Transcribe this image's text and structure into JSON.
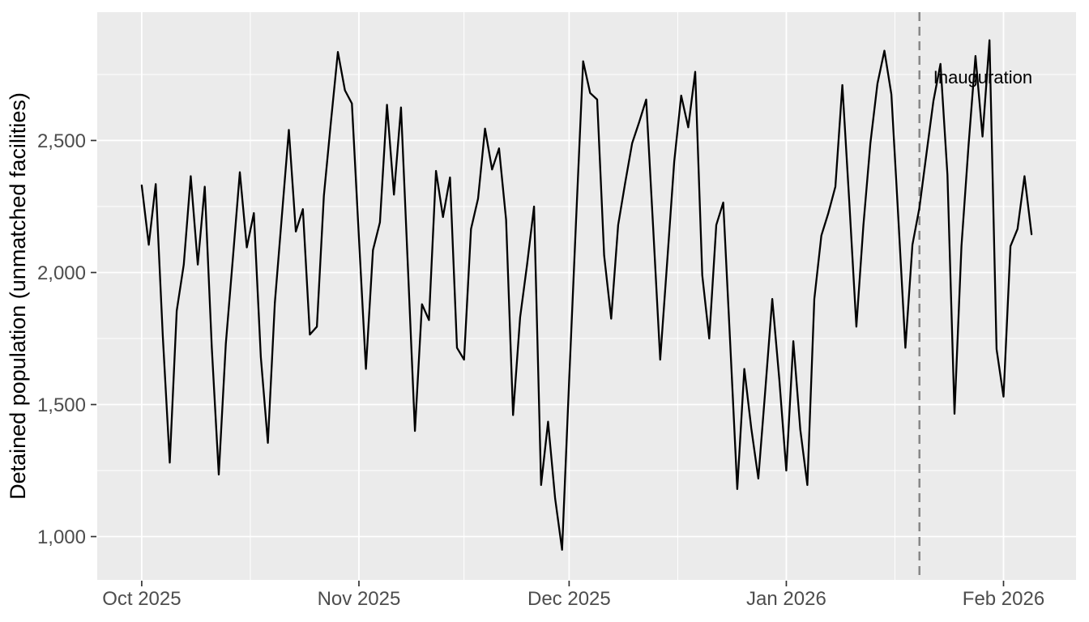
{
  "chart_data": {
    "type": "line",
    "title": "",
    "xlabel": "",
    "ylabel": "Detained population (unmatched facilities)",
    "legend_position": "none",
    "grid": "major and minor white gridlines on grey panel",
    "start_date": "2025-10-01",
    "end_date": "2026-02-05",
    "frequency": "daily",
    "values": [
      2330,
      2105,
      2335,
      1760,
      1280,
      1855,
      2030,
      2365,
      2030,
      2325,
      1715,
      1235,
      1730,
      2050,
      2380,
      2095,
      2225,
      1680,
      1355,
      1885,
      2215,
      2540,
      2155,
      2240,
      1765,
      1795,
      2290,
      2570,
      2835,
      2690,
      2640,
      2130,
      1635,
      2085,
      2190,
      2635,
      2295,
      2625,
      2015,
      1400,
      1880,
      1820,
      2385,
      2210,
      2360,
      1715,
      1670,
      2165,
      2280,
      2545,
      2390,
      2470,
      2200,
      1460,
      1830,
      2030,
      2250,
      1195,
      1435,
      1145,
      950,
      1590,
      2200,
      2800,
      2680,
      2655,
      2065,
      1825,
      2180,
      2340,
      2490,
      2570,
      2655,
      2170,
      1670,
      2040,
      2420,
      2670,
      2550,
      2760,
      1990,
      1750,
      2180,
      2265,
      1725,
      1180,
      1635,
      1410,
      1220,
      1555,
      1900,
      1595,
      1250,
      1740,
      1405,
      1195,
      1900,
      2140,
      2225,
      2325,
      2710,
      2260,
      1795,
      2180,
      2490,
      2715,
      2840,
      2675,
      2200,
      1715,
      2105,
      2245,
      2450,
      2650,
      2790,
      2370,
      1465,
      2100,
      2480,
      2820,
      2515,
      2880,
      1710,
      1530,
      2100,
      2165,
      2365,
      2145
    ],
    "ylim": [
      836,
      2986
    ],
    "x_pad_frac": 0.05,
    "x_ticks": [
      {
        "date": "2025-10-01",
        "label": "Oct 2025"
      },
      {
        "date": "2025-11-01",
        "label": "Nov 2025"
      },
      {
        "date": "2025-12-01",
        "label": "Dec 2025"
      },
      {
        "date": "2026-01-01",
        "label": "Jan 2026"
      },
      {
        "date": "2026-02-01",
        "label": "Feb 2026"
      }
    ],
    "y_ticks": [
      {
        "value": 1000,
        "label": "1,000"
      },
      {
        "value": 1500,
        "label": "1,500"
      },
      {
        "value": 2000,
        "label": "2,000"
      },
      {
        "value": 2500,
        "label": "2,500"
      }
    ],
    "y_minor": [
      1250,
      1750,
      2250,
      2750
    ],
    "annotation": {
      "label": "Inauguration",
      "date": "2026-01-20",
      "line_style": "dashed"
    },
    "colors": {
      "background": "#FFFFFF",
      "panel_bg": "#EBEBEB",
      "grid": "#FFFFFF",
      "series_line": "#000000",
      "event_line": "#878787",
      "axis_text": "#4D4D4D",
      "tick_mark": "#333333",
      "axis_title": "#000000",
      "annotation_text": "#000000"
    }
  }
}
